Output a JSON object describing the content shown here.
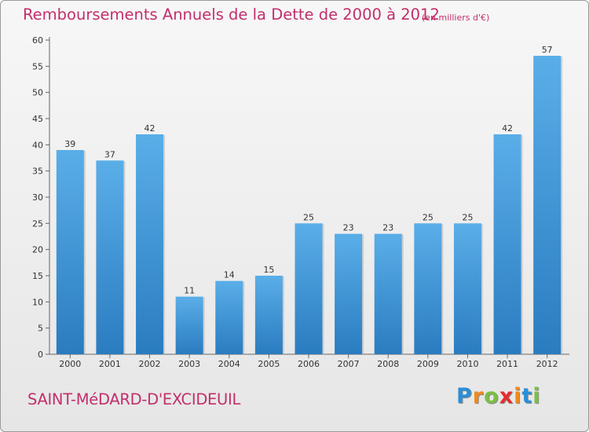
{
  "header": {
    "title": "Remboursements Annuels de la Dette de 2000 à 2012",
    "unit": "(en milliers d'€)"
  },
  "footer": {
    "commune": "SAINT-MéDARD-D'EXCIDEUIL",
    "logo_letters": [
      "P",
      "r",
      "o",
      "x",
      "i",
      "t",
      "i"
    ],
    "logo_colors": [
      "#2a8fd6",
      "#f08a1c",
      "#7bc043",
      "#e52d2d",
      "#f08a1c",
      "#2a8fd6",
      "#7bc043"
    ]
  },
  "chart_data": {
    "type": "bar",
    "categories": [
      "2000",
      "2001",
      "2002",
      "2003",
      "2004",
      "2005",
      "2006",
      "2007",
      "2008",
      "2009",
      "2010",
      "2011",
      "2012"
    ],
    "values": [
      39,
      37,
      42,
      11,
      14,
      15,
      25,
      23,
      23,
      25,
      25,
      42,
      57
    ],
    "title": "Remboursements Annuels de la Dette de 2000 à 2012",
    "ylim": [
      0,
      60
    ],
    "yticks": [
      0,
      5,
      10,
      15,
      20,
      25,
      30,
      35,
      40,
      45,
      50,
      55,
      60
    ],
    "grid": false,
    "bar_color_top": "#5aaee8",
    "bar_color_bottom": "#2a7cc0"
  }
}
